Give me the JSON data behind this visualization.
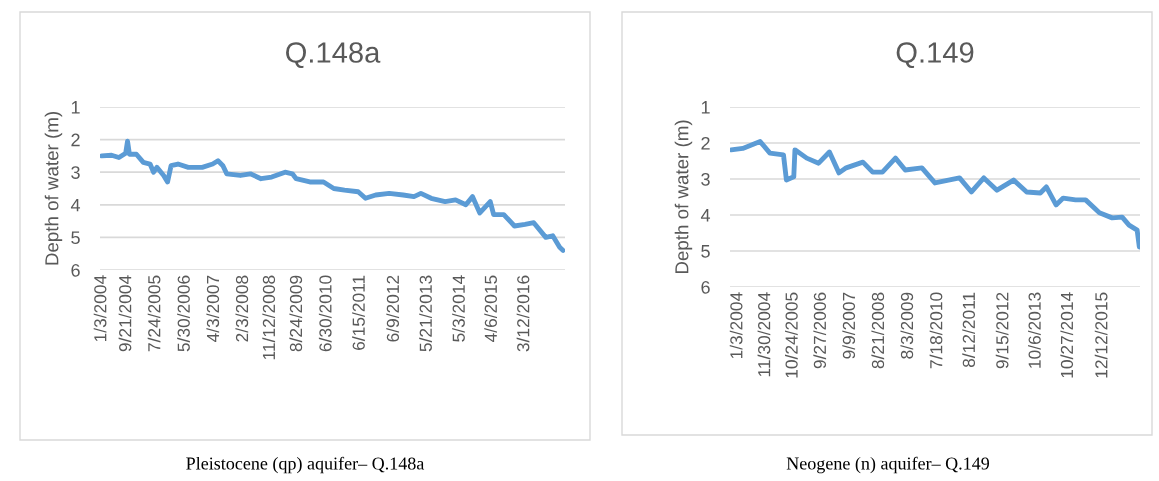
{
  "chart_data": [
    {
      "type": "line",
      "title": "Q.148a",
      "ylabel": "Depth of water (m)",
      "annotations": [
        "Pleistocene (qp) aquifer– Q.148a"
      ],
      "ylim": [
        6,
        1
      ],
      "yticks": [
        1,
        2,
        3,
        4,
        5,
        6
      ],
      "grid": "y",
      "marker": "none",
      "line_style": "solid",
      "xlim": [
        "2003-12-15",
        "2017-05-10"
      ],
      "xticks": [
        {
          "value": "2004-01-03",
          "label": "1/3/2004"
        },
        {
          "value": "2004-09-21",
          "label": "9/21/2004"
        },
        {
          "value": "2005-07-24",
          "label": "7/24/2005"
        },
        {
          "value": "2006-05-30",
          "label": "5/30/2006"
        },
        {
          "value": "2007-04-03",
          "label": "4/3/2007"
        },
        {
          "value": "2008-02-03",
          "label": "2/3/2008"
        },
        {
          "value": "2008-11-12",
          "label": "11/12/2008"
        },
        {
          "value": "2009-08-24",
          "label": "8/24/2009"
        },
        {
          "value": "2010-06-30",
          "label": "6/30/2010"
        },
        {
          "value": "2011-06-15",
          "label": "6/15/2011"
        },
        {
          "value": "2012-06-09",
          "label": "6/9/2012"
        },
        {
          "value": "2013-05-21",
          "label": "5/21/2013"
        },
        {
          "value": "2014-05-03",
          "label": "5/3/2014"
        },
        {
          "value": "2015-04-06",
          "label": "4/6/2015"
        },
        {
          "value": "2016-03-12",
          "label": "3/12/2016"
        }
      ],
      "series": [
        {
          "color": "#5b9bd5",
          "x": [
            "2004-01-03",
            "2004-04-15",
            "2004-07-01",
            "2004-09-10",
            "2004-09-30",
            "2004-10-20",
            "2005-01-01",
            "2005-03-15",
            "2005-05-25",
            "2005-07-01",
            "2005-08-05",
            "2005-10-15",
            "2005-11-25",
            "2006-01-01",
            "2006-03-15",
            "2006-07-01",
            "2006-11-25",
            "2007-03-15",
            "2007-05-10",
            "2007-07-01",
            "2007-08-10",
            "2008-01-01",
            "2008-04-15",
            "2008-08-05",
            "2008-11-25",
            "2009-04-15",
            "2009-07-01",
            "2009-08-10",
            "2010-01-01",
            "2010-05-25",
            "2010-09-10",
            "2011-01-01",
            "2011-05-25",
            "2011-08-10",
            "2011-11-25",
            "2012-04-15",
            "2012-09-10",
            "2013-01-01",
            "2013-03-15",
            "2013-07-01",
            "2013-11-25",
            "2014-03-15",
            "2014-07-01",
            "2014-09-10",
            "2014-11-25",
            "2015-03-15",
            "2015-04-20",
            "2015-08-05",
            "2015-11-25",
            "2016-03-15",
            "2016-06-15",
            "2016-10-20",
            "2017-01-01",
            "2017-03-15",
            "2017-04-20"
          ],
          "values": [
            2.5,
            2.48,
            2.55,
            2.42,
            2.05,
            2.45,
            2.45,
            2.7,
            2.75,
            3.0,
            2.85,
            3.1,
            3.3,
            2.8,
            2.75,
            2.85,
            2.85,
            2.75,
            2.65,
            2.8,
            3.05,
            3.1,
            3.05,
            3.2,
            3.15,
            3.0,
            3.05,
            3.2,
            3.3,
            3.3,
            3.5,
            3.55,
            3.6,
            3.8,
            3.7,
            3.65,
            3.7,
            3.75,
            3.65,
            3.8,
            3.9,
            3.85,
            4.0,
            3.75,
            4.25,
            3.9,
            4.3,
            4.3,
            4.65,
            4.6,
            4.55,
            5.0,
            4.95,
            5.3,
            5.4
          ]
        }
      ]
    },
    {
      "type": "line",
      "title": "Q.149",
      "ylabel": "Depth of water (m)",
      "annotations": [
        "Neogene (n) aquifer– Q.149"
      ],
      "ylim": [
        6,
        1
      ],
      "yticks": [
        1,
        2,
        3,
        4,
        5,
        6
      ],
      "grid": "y",
      "marker": "none",
      "line_style": "solid",
      "xlim": [
        "2003-10-01",
        "2017-02-28"
      ],
      "xticks": [
        {
          "value": "2004-01-03",
          "label": "1/3/2004"
        },
        {
          "value": "2004-11-30",
          "label": "11/30/2004"
        },
        {
          "value": "2005-10-24",
          "label": "10/24/2005"
        },
        {
          "value": "2006-09-27",
          "label": "9/27/2006"
        },
        {
          "value": "2007-09-09",
          "label": "9/9/2007"
        },
        {
          "value": "2008-08-21",
          "label": "8/21/2008"
        },
        {
          "value": "2009-08-03",
          "label": "8/3/2009"
        },
        {
          "value": "2010-07-18",
          "label": "7/18/2010"
        },
        {
          "value": "2011-08-12",
          "label": "8/12/2011"
        },
        {
          "value": "2012-09-15",
          "label": "9/15/2012"
        },
        {
          "value": "2013-10-06",
          "label": "10/6/2013"
        },
        {
          "value": "2014-10-27",
          "label": "10/27/2014"
        },
        {
          "value": "2015-12-12",
          "label": "12/12/2015"
        }
      ],
      "series": [
        {
          "color": "#5b9bd5",
          "x": [
            "2003-10-15",
            "2004-03-01",
            "2004-09-25",
            "2005-01-20",
            "2005-07-01",
            "2005-08-05",
            "2005-11-01",
            "2005-11-15",
            "2006-04-05",
            "2006-08-25",
            "2007-01-01",
            "2007-04-25",
            "2007-07-20",
            "2008-02-05",
            "2008-06-01",
            "2008-09-25",
            "2009-02-28",
            "2009-06-25",
            "2010-01-10",
            "2010-06-15",
            "2011-04-05",
            "2011-08-25",
            "2012-01-20",
            "2012-06-25",
            "2013-01-10",
            "2013-06-15",
            "2013-11-25",
            "2014-02-05",
            "2014-06-01",
            "2014-08-25",
            "2015-01-20",
            "2015-05-20",
            "2015-11-01",
            "2016-04-01",
            "2016-07-30",
            "2016-10-20",
            "2017-01-25",
            "2017-02-20"
          ],
          "values": [
            2.19,
            2.15,
            1.96,
            2.28,
            2.33,
            3.03,
            2.94,
            2.19,
            2.42,
            2.56,
            2.25,
            2.83,
            2.69,
            2.53,
            2.81,
            2.81,
            2.42,
            2.75,
            2.69,
            3.11,
            2.97,
            3.36,
            2.97,
            3.31,
            3.03,
            3.36,
            3.39,
            3.22,
            3.72,
            3.53,
            3.58,
            3.58,
            3.94,
            4.08,
            4.06,
            4.28,
            4.42,
            4.89
          ]
        }
      ]
    }
  ]
}
